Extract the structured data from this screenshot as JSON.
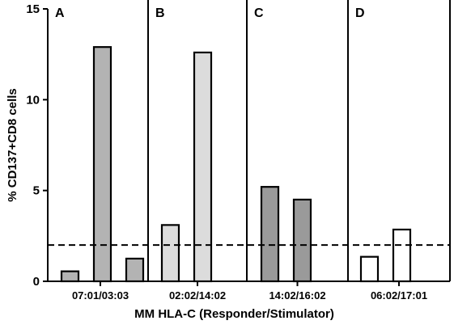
{
  "chart_data": {
    "type": "bar",
    "ylabel": "% CD137+CD8 cells",
    "xlabel": "MM HLA-C (Responder/Stimulator)",
    "ylim": [
      0,
      15
    ],
    "yticks": [
      0,
      5,
      10,
      15
    ],
    "threshold": 2,
    "groups": [
      {
        "panel": "A",
        "label": "07:01/03:03",
        "values": [
          0.55,
          12.9,
          1.25
        ],
        "color": "#b3b3b3"
      },
      {
        "panel": "B",
        "label": "02:02/14:02",
        "values": [
          3.1,
          12.6
        ],
        "color": "#dcdcdc"
      },
      {
        "panel": "C",
        "label": "14:02/16:02",
        "values": [
          5.2,
          4.5
        ],
        "color": "#9a9a9a"
      },
      {
        "panel": "D",
        "label": "06:02/17:01",
        "values": [
          1.35,
          2.85
        ],
        "color": "#ffffff"
      }
    ]
  }
}
